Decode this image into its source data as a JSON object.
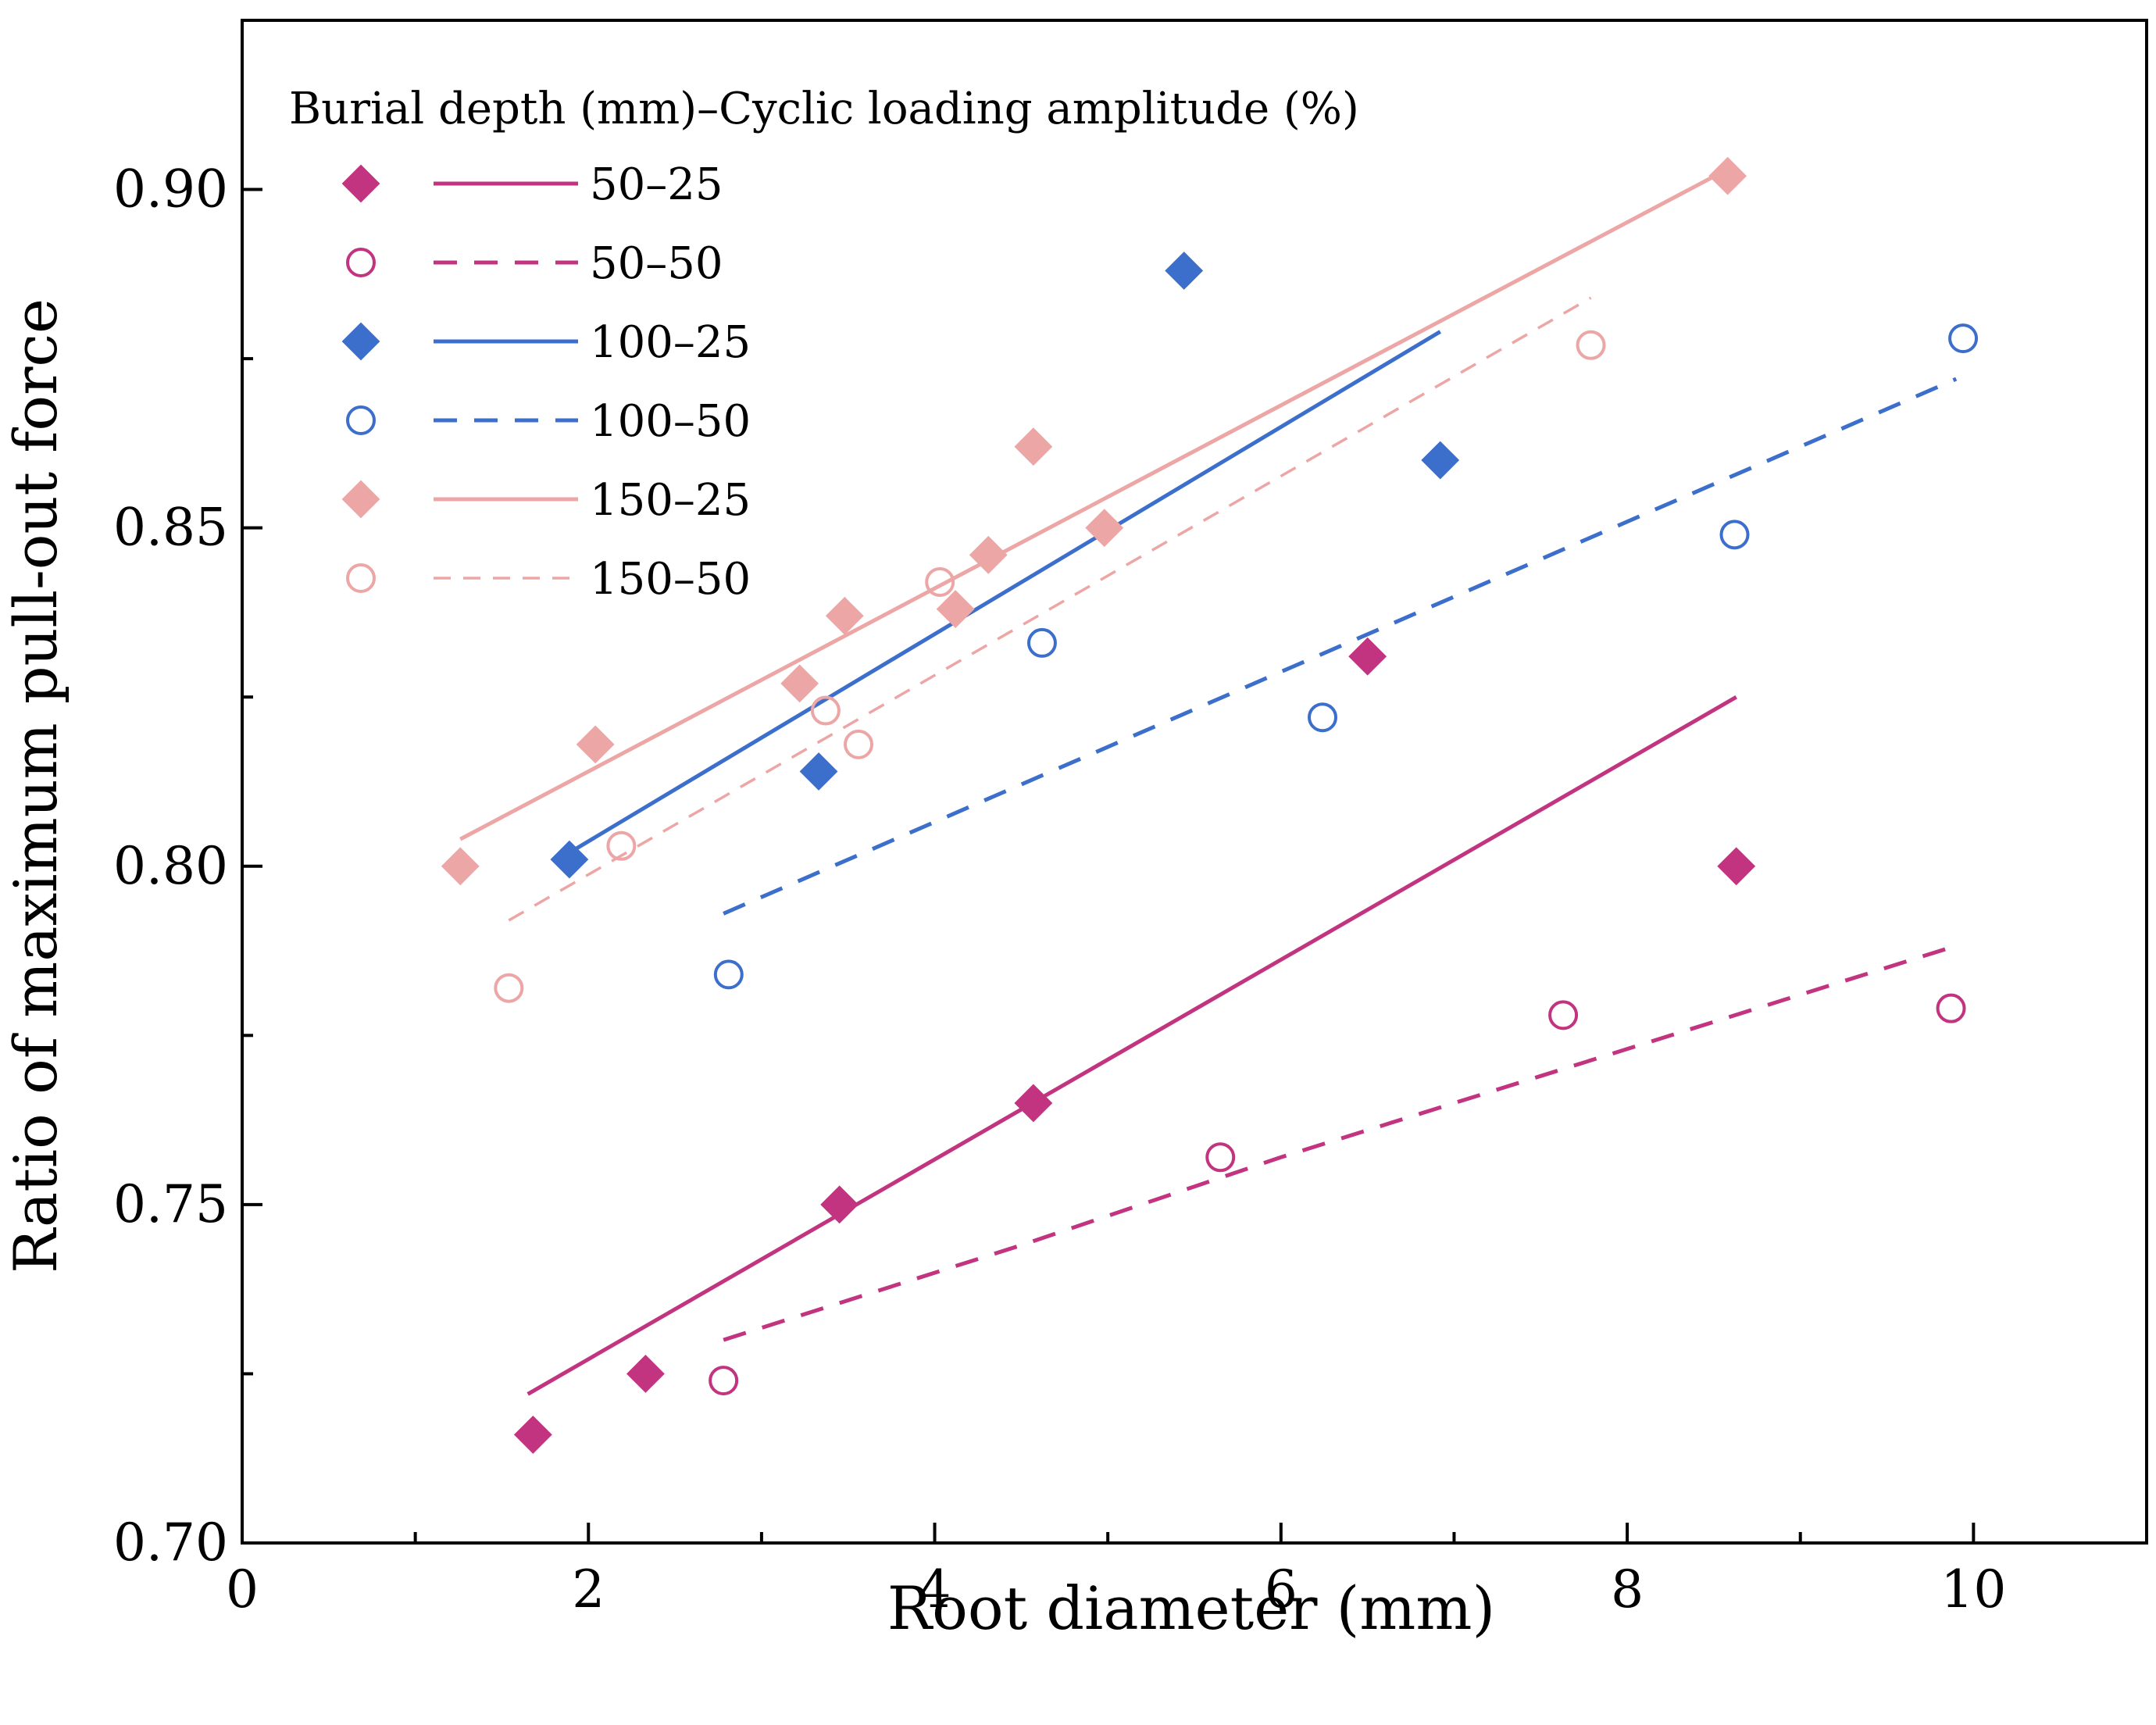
{
  "chart_data": {
    "type": "scatter",
    "title": "",
    "xlabel": "Root diameter (mm)",
    "ylabel": "Ratio of maximum pull-out force",
    "xlim": [
      0,
      11
    ],
    "ylim": [
      0.7,
      0.925
    ],
    "x_ticks": [
      0,
      2,
      4,
      6,
      8,
      10
    ],
    "x_tick_labels": [
      "0",
      "2",
      "4",
      "6",
      "8",
      "10"
    ],
    "x_minor_ticks": [
      1,
      3,
      5,
      7,
      9,
      11
    ],
    "y_ticks": [
      0.7,
      0.75,
      0.8,
      0.85,
      0.9
    ],
    "y_tick_labels": [
      "0.70",
      "0.75",
      "0.80",
      "0.85",
      "0.90"
    ],
    "grid": false,
    "legend_title": "Burial depth (mm)–Cyclic loading amplitude (%)",
    "legend_position": "top-left",
    "series": [
      {
        "name": "50–25",
        "color": "#C2347F",
        "marker": "diamond-filled",
        "line": "solid",
        "points": [
          [
            1.68,
            0.716
          ],
          [
            2.33,
            0.725
          ],
          [
            3.45,
            0.75
          ],
          [
            4.57,
            0.765
          ],
          [
            6.5,
            0.831
          ],
          [
            8.63,
            0.8
          ]
        ],
        "fit": [
          [
            1.65,
            0.722
          ],
          [
            8.63,
            0.825
          ]
        ]
      },
      {
        "name": "50–50",
        "color": "#C2347F",
        "marker": "circle-open",
        "line": "dashed",
        "points": [
          [
            2.78,
            0.724
          ],
          [
            5.65,
            0.757
          ],
          [
            7.63,
            0.778
          ],
          [
            9.87,
            0.779
          ]
        ],
        "fit": [
          [
            2.78,
            0.73
          ],
          [
            4.5,
            0.744
          ],
          [
            6.0,
            0.757
          ],
          [
            7.5,
            0.769
          ],
          [
            8.5,
            0.777
          ],
          [
            9.87,
            0.788
          ]
        ]
      },
      {
        "name": "100–25",
        "color": "#3C6FCC",
        "marker": "diamond-filled",
        "line": "solid",
        "points": [
          [
            1.89,
            0.801
          ],
          [
            3.33,
            0.814
          ],
          [
            5.44,
            0.888
          ],
          [
            6.92,
            0.86
          ]
        ],
        "fit": [
          [
            1.89,
            0.802
          ],
          [
            6.92,
            0.879
          ]
        ]
      },
      {
        "name": "100–50",
        "color": "#3C6FCC",
        "marker": "circle-open",
        "line": "dashed",
        "points": [
          [
            2.81,
            0.784
          ],
          [
            4.62,
            0.833
          ],
          [
            6.24,
            0.822
          ],
          [
            8.62,
            0.849
          ],
          [
            9.94,
            0.878
          ]
        ],
        "fit": [
          [
            2.78,
            0.793
          ],
          [
            9.9,
            0.872
          ]
        ]
      },
      {
        "name": "150–25",
        "color": "#EDA6A6",
        "marker": "diamond-filled",
        "line": "solid",
        "points": [
          [
            1.26,
            0.8
          ],
          [
            2.04,
            0.818
          ],
          [
            3.22,
            0.827
          ],
          [
            3.48,
            0.837
          ],
          [
            4.12,
            0.838
          ],
          [
            4.31,
            0.846
          ],
          [
            4.57,
            0.862
          ],
          [
            4.98,
            0.85
          ],
          [
            8.58,
            0.902
          ]
        ],
        "fit": [
          [
            1.26,
            0.804
          ],
          [
            8.58,
            0.903
          ]
        ]
      },
      {
        "name": "150–50",
        "color": "#EDA6A6",
        "marker": "circle-open",
        "line": "dashed",
        "points": [
          [
            1.54,
            0.782
          ],
          [
            2.19,
            0.803
          ],
          [
            3.37,
            0.823
          ],
          [
            3.56,
            0.818
          ],
          [
            4.03,
            0.842
          ],
          [
            7.79,
            0.877
          ]
        ],
        "fit": [
          [
            1.54,
            0.792
          ],
          [
            7.79,
            0.884
          ]
        ]
      }
    ]
  }
}
